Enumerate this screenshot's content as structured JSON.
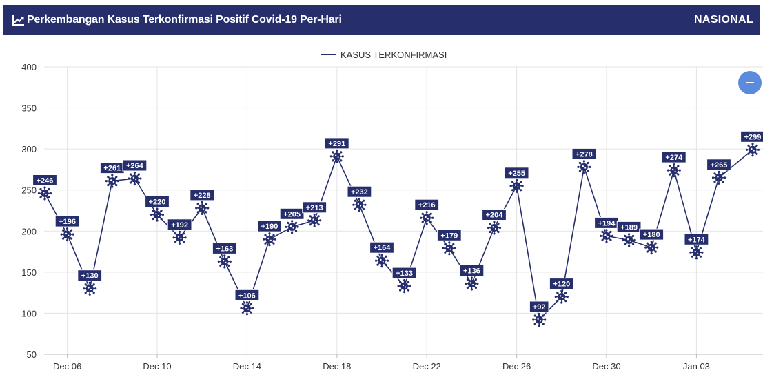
{
  "header": {
    "title": "Perkembangan Kasus Terkonfirmasi Positif Covid-19 Per-Hari",
    "scope": "NASIONAL"
  },
  "controls": {
    "collapse_icon": "minus-icon"
  },
  "colors": {
    "header_bg": "#262e6c",
    "series": "#262e6c",
    "collapse_button": "#5b8bdc"
  },
  "chart_data": {
    "type": "line",
    "legend": "KASUS TERKONFIRMASI",
    "legend_position": "top-center",
    "grid": true,
    "marker_icon": "virus-icon",
    "ylim": [
      50,
      400
    ],
    "yticks": [
      50,
      100,
      150,
      200,
      250,
      300,
      350,
      400
    ],
    "xticks": [
      "Dec 06",
      "Dec 10",
      "Dec 14",
      "Dec 18",
      "Dec 22",
      "Dec 26",
      "Dec 30",
      "Jan 03"
    ],
    "series": [
      {
        "name": "KASUS TERKONFIRMASI",
        "x": [
          "Dec 05",
          "Dec 06",
          "Dec 07",
          "Dec 08",
          "Dec 09",
          "Dec 10",
          "Dec 11",
          "Dec 12",
          "Dec 13",
          "Dec 14",
          "Dec 15",
          "Dec 16",
          "Dec 17",
          "Dec 18",
          "Dec 19",
          "Dec 20",
          "Dec 21",
          "Dec 22",
          "Dec 23",
          "Dec 24",
          "Dec 25",
          "Dec 26",
          "Dec 27",
          "Dec 28",
          "Dec 29",
          "Dec 30",
          "Dec 31",
          "Jan 01",
          "Jan 02",
          "Jan 03",
          "Jan 04"
        ],
        "values": [
          246,
          196,
          130,
          261,
          264,
          220,
          192,
          228,
          163,
          106,
          190,
          205,
          213,
          291,
          232,
          164,
          133,
          216,
          179,
          136,
          204,
          255,
          92,
          120,
          278,
          194,
          189,
          180,
          274,
          174,
          265
        ],
        "labels": [
          "+246",
          "+196",
          "+130",
          "+261",
          "+264",
          "+220",
          "+192",
          "+228",
          "+163",
          "+106",
          "+190",
          "+205",
          "+213",
          "+291",
          "+232",
          "+164",
          "+133",
          "+216",
          "+179",
          "+136",
          "+204",
          "+255",
          "+92",
          "+120",
          "+278",
          "+194",
          "+189",
          "+180",
          "+274",
          "+174",
          "+265"
        ]
      }
    ],
    "last_point": {
      "x": "Jan 05",
      "value": 299,
      "label": "+299"
    }
  }
}
